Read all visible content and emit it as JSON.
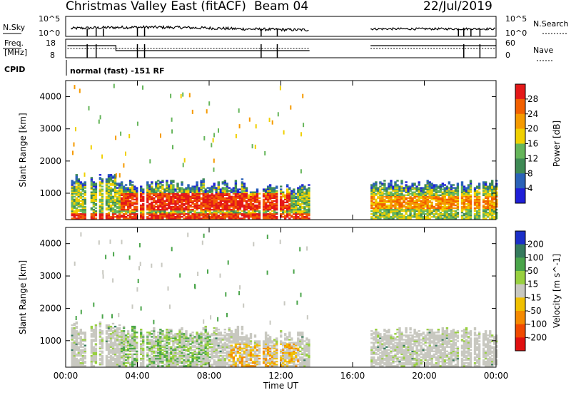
{
  "header": {
    "title": "Christmas Valley East (fitACF)",
    "beam": "Beam 04",
    "date": "22/Jul/2019"
  },
  "panels": {
    "nsky_label": "N.Sky",
    "nsky_ticks": [
      "10^5",
      "10^0"
    ],
    "nsearch_label": "N.Search",
    "nsearch_ticks": [
      "10^5",
      "10^0"
    ],
    "freq_label_1": "Freq.",
    "freq_label_2": "[MHz]",
    "freq_ticks": [
      "18",
      "8"
    ],
    "nave_label": "Nave",
    "nave_ticks": [
      "60",
      "0"
    ],
    "cpid_label": "CPID",
    "cpid_text": "normal (fast) -151 RF"
  },
  "colors": {
    "power": [
      "#1f1fd8",
      "#2a62b8",
      "#3e8a55",
      "#65b55a",
      "#f0d000",
      "#f59a00",
      "#f26000",
      "#e41818"
    ],
    "velocity": [
      "#1b2fc8",
      "#357a5d",
      "#4aa54a",
      "#98d040",
      "#c8c8c0",
      "#f0c000",
      "#f58a00",
      "#f04a00",
      "#e01010"
    ],
    "dots": "#000000"
  },
  "chart_data": [
    {
      "type": "heatmap",
      "title": "Power",
      "ylabel": "Slant Range [km]",
      "xlabel": "",
      "x_ticks": [
        "00:00",
        "04:00",
        "08:00",
        "12:00",
        "16:00",
        "20:00",
        "00:00"
      ],
      "y_ticks": [
        "1000",
        "2000",
        "3000",
        "4000"
      ],
      "ylim": [
        180,
        4500
      ],
      "colorbar_label": "Power [dB]",
      "colorbar_ticks": [
        "4",
        "8",
        "12",
        "16",
        "20",
        "24",
        "28"
      ],
      "colorbar_range": [
        0,
        32
      ],
      "approx_regions": [
        {
          "t_start": 0.5,
          "t_end": 13.6,
          "r_start": 200,
          "r_end": 1400,
          "level": "12-32 dB (red core 500-1000 km, 04:00-12:00)"
        },
        {
          "t_start": 17.0,
          "t_end": 24.0,
          "r_start": 200,
          "r_end": 1400,
          "level": "8-24 dB"
        }
      ]
    },
    {
      "type": "heatmap",
      "title": "Velocity",
      "ylabel": "Slant Range [km]",
      "xlabel": "Time UT",
      "x_ticks": [
        "00:00",
        "04:00",
        "08:00",
        "12:00",
        "16:00",
        "20:00",
        "00:00"
      ],
      "y_ticks": [
        "1000",
        "2000",
        "3000",
        "4000"
      ],
      "ylim": [
        180,
        4500
      ],
      "colorbar_label": "Velocity [m s^-1]",
      "colorbar_ticks": [
        "200",
        "100",
        "50",
        "15",
        "-15",
        "-50",
        "-100",
        "-200"
      ],
      "colorbar_range": [
        -250,
        250
      ],
      "approx_regions": [
        {
          "t_start": 0.5,
          "t_end": 13.6,
          "r_start": 200,
          "r_end": 1400,
          "level": "-15 to 15 (grey), 15-100 (green), -50 to -100 near 11:00"
        },
        {
          "t_start": 17.0,
          "t_end": 24.0,
          "r_start": 200,
          "r_end": 1400,
          "level": "-15 to 15 (grey)"
        }
      ]
    }
  ]
}
